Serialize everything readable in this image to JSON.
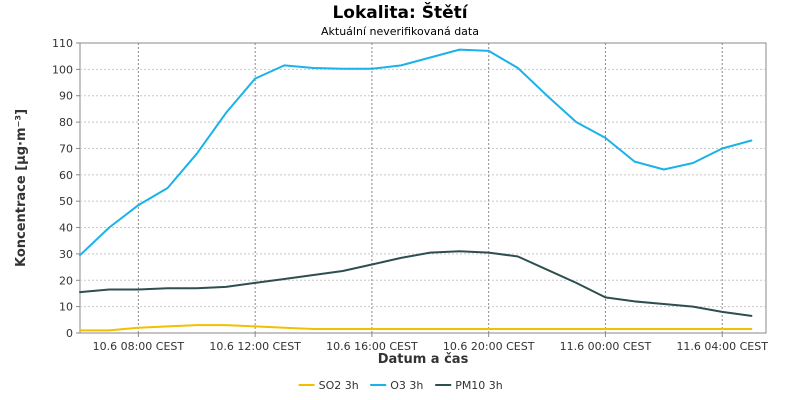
{
  "chart_data": {
    "type": "line",
    "title": "Lokalita: Štětí",
    "subtitle": "Aktuální neverifikovaná data",
    "xlabel": "Datum a čas",
    "ylabel": "Koncentrace [µg·m⁻³]",
    "ylim": [
      0,
      110
    ],
    "yticks": [
      0,
      10,
      20,
      30,
      40,
      50,
      60,
      70,
      80,
      90,
      100,
      110
    ],
    "xlim": [
      6,
      29.5
    ],
    "xticks": [
      {
        "x": 8,
        "label": "10.6 08:00 CEST"
      },
      {
        "x": 12,
        "label": "10.6 12:00 CEST"
      },
      {
        "x": 16,
        "label": "10.6 16:00 CEST"
      },
      {
        "x": 20,
        "label": "10.6 20:00 CEST"
      },
      {
        "x": 24,
        "label": "11.6 00:00 CEST"
      },
      {
        "x": 28,
        "label": "11.6 04:00 CEST"
      }
    ],
    "grid": true,
    "legend_position": "bottom",
    "x": [
      6,
      7,
      8,
      9,
      10,
      11,
      12,
      13,
      14,
      15,
      16,
      17,
      18,
      19,
      20,
      21,
      22,
      23,
      24,
      25,
      26,
      27,
      28,
      29
    ],
    "series": [
      {
        "name": "SO2 3h",
        "color": "#f2c000",
        "values": [
          1,
          1,
          2,
          2.5,
          3,
          3,
          2.5,
          2,
          1.5,
          1.5,
          1.5,
          1.5,
          1.5,
          1.5,
          1.5,
          1.5,
          1.5,
          1.5,
          1.5,
          1.5,
          1.5,
          1.5,
          1.5,
          1.5
        ]
      },
      {
        "name": "O3 3h",
        "color": "#1ab2e8",
        "values": [
          29.5,
          40,
          48.5,
          55,
          68,
          83.5,
          96.5,
          101.5,
          100.5,
          100.2,
          100.2,
          101.5,
          104.5,
          107.5,
          107,
          100.5,
          90,
          80,
          74,
          65,
          62,
          64.5,
          70,
          73
        ]
      },
      {
        "name": "PM10 3h",
        "color": "#2f4f4f",
        "values": [
          15.5,
          16.5,
          16.5,
          17,
          17,
          17.5,
          19,
          20.5,
          22,
          23.5,
          26,
          28.5,
          30.5,
          31,
          30.5,
          29,
          24,
          19,
          13.5,
          12,
          11,
          10,
          8,
          6.5
        ]
      }
    ]
  }
}
